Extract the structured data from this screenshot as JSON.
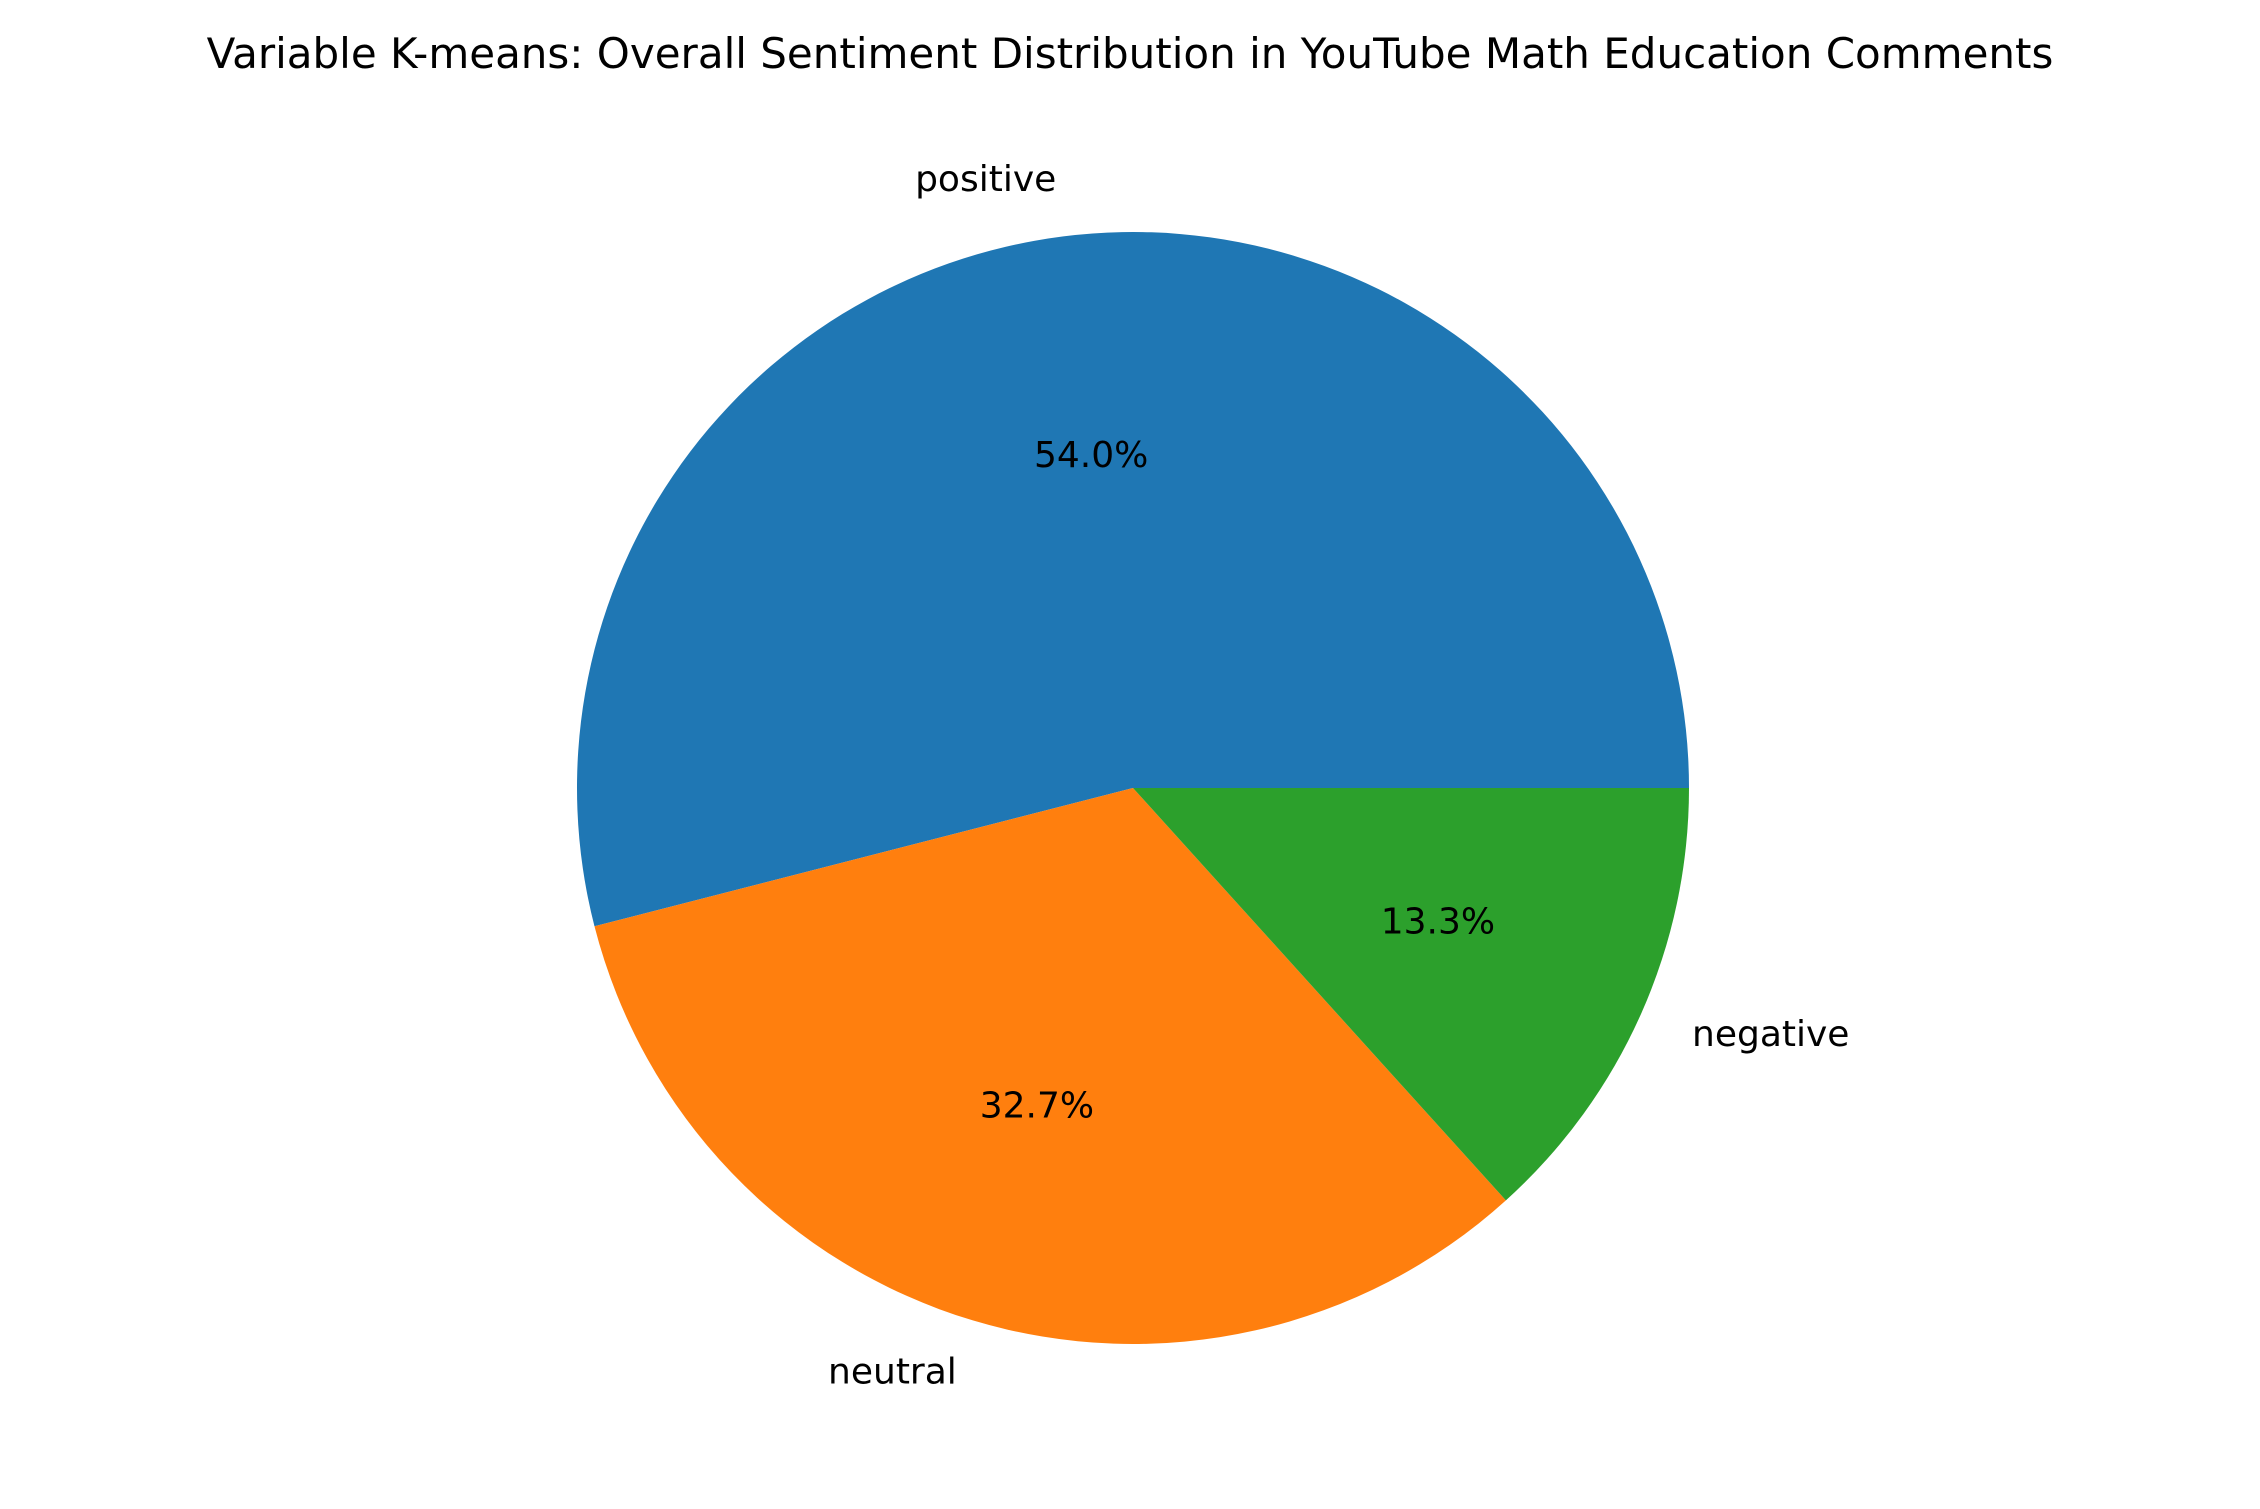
{
  "chart_data": {
    "type": "pie",
    "title": "Variable K-means: Overall Sentiment Distribution in YouTube Math Education Comments",
    "slices": [
      {
        "label": "positive",
        "value": 54.0,
        "pct_label": "54.0%",
        "color": "#1f77b4"
      },
      {
        "label": "neutral",
        "value": 32.7,
        "pct_label": "32.7%",
        "color": "#ff7f0e"
      },
      {
        "label": "negative",
        "value": 13.3,
        "pct_label": "13.3%",
        "color": "#2ca02c"
      }
    ],
    "start_angle_deg": 0,
    "direction": "counterclockwise",
    "legend": "none"
  }
}
